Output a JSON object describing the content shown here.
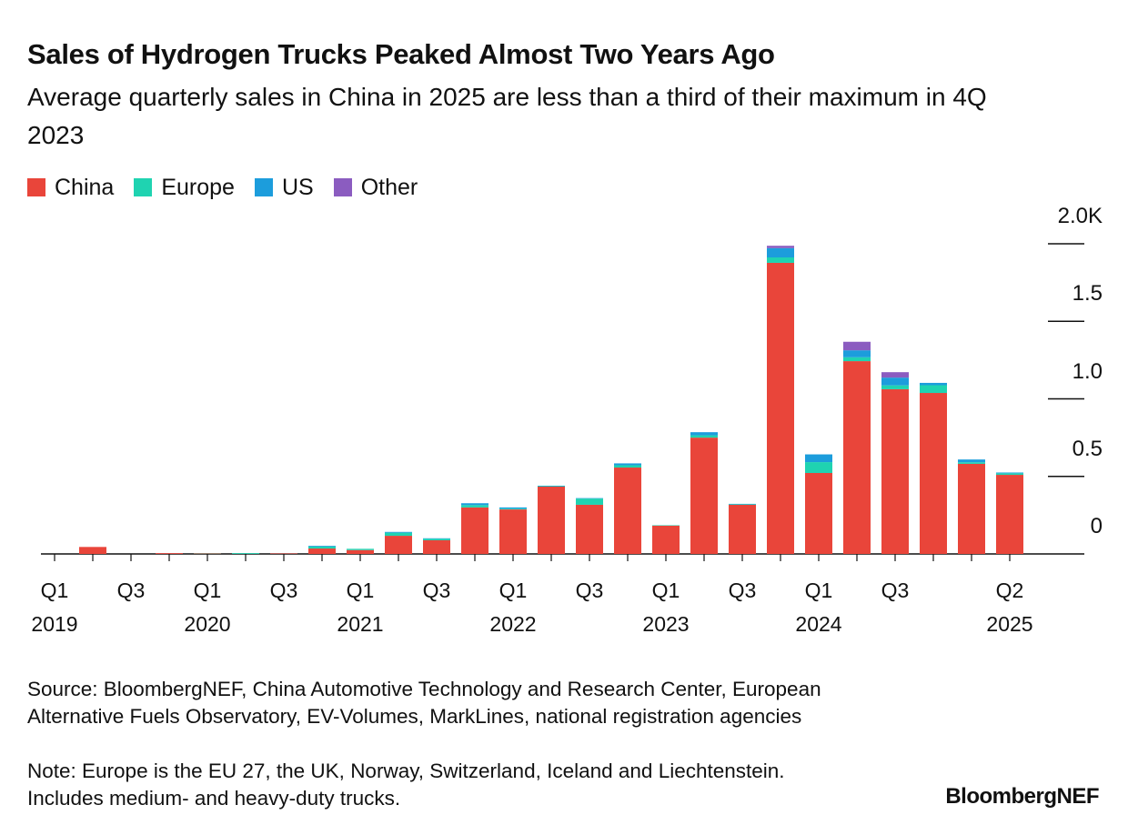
{
  "chart_data": {
    "type": "stacked_bar",
    "title": "Sales of Hydrogen Trucks Peaked Almost Two Years Ago",
    "subtitle": "Average quarterly sales in China in 2025 are less than a third of their maximum in 4Q 2023",
    "categories": [
      "Q1 2019",
      null,
      "Q3",
      null,
      "Q1 2020",
      null,
      "Q3",
      null,
      "Q1 2021",
      null,
      "Q3",
      null,
      "Q1 2022",
      null,
      "Q3",
      null,
      "Q1 2023",
      null,
      "Q3",
      null,
      "Q1 2024",
      null,
      "Q3",
      null,
      null,
      "Q2 2025"
    ],
    "series": [
      {
        "name": "China",
        "color": "#e9453a",
        "values": [
          0,
          45,
          0,
          5,
          3,
          0,
          3,
          35,
          25,
          117,
          88,
          300,
          287,
          434,
          317,
          557,
          182,
          750,
          317,
          1877,
          522,
          1243,
          1062,
          1038,
          581,
          510
        ]
      },
      {
        "name": "Europe",
        "color": "#1fd3b1",
        "values": [
          0,
          0,
          0,
          0,
          2,
          5,
          0,
          12,
          8,
          20,
          10,
          15,
          5,
          3,
          40,
          15,
          3,
          15,
          3,
          35,
          70,
          25,
          25,
          50,
          10,
          10
        ]
      },
      {
        "name": "US",
        "color": "#1c9ddc",
        "values": [
          0,
          0,
          0,
          0,
          0,
          0,
          0,
          5,
          0,
          5,
          3,
          12,
          8,
          3,
          3,
          12,
          0,
          20,
          3,
          60,
          50,
          45,
          50,
          15,
          18,
          5
        ]
      },
      {
        "name": "Other",
        "color": "#8b5cc0",
        "values": [
          0,
          0,
          0,
          0,
          0,
          0,
          0,
          0,
          0,
          0,
          0,
          0,
          0,
          0,
          0,
          0,
          0,
          0,
          0,
          15,
          0,
          55,
          35,
          0,
          0,
          0
        ]
      }
    ],
    "ylim": [
      0,
      2000
    ],
    "yticks": [
      0,
      {
        "value": 500,
        "label": "0.5"
      },
      {
        "value": 1000,
        "label": "1.0"
      },
      {
        "value": 1500,
        "label": "1.5"
      },
      {
        "value": 2000,
        "label": "2.0K"
      }
    ],
    "legend": "top-left",
    "source": "Source: BloombergNEF, China Automotive Technology and Research Center, European Alternative Fuels Observatory, EV-Volumes, MarkLines, national registration agencies",
    "note": "Note: Europe is the EU 27, the UK, Norway, Switzerland, Iceland and Liechtenstein. Includes medium- and heavy-duty trucks.",
    "brand": "BloombergNEF"
  }
}
